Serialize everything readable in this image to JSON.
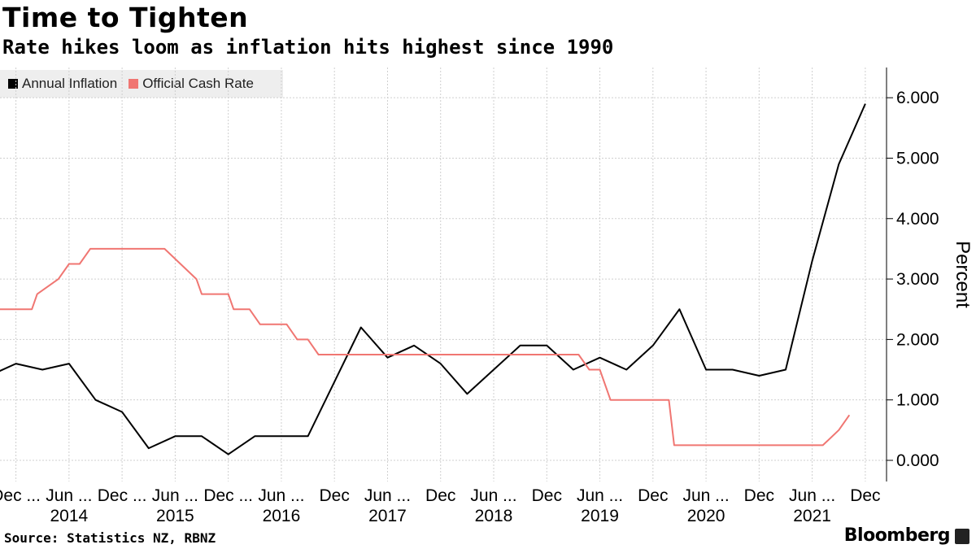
{
  "title": "Time to Tighten",
  "subtitle": "Rate hikes loom as inflation hits highest since 1990",
  "source": "Source: Statistics NZ, RBNZ",
  "brand": "Bloomberg",
  "colors": {
    "inflation": "#000000",
    "ocr": "#f07672",
    "grid": "#cfcfcf"
  },
  "chart_data": {
    "type": "line",
    "ylabel": "Percent",
    "ylim": [
      -0.35,
      6.5
    ],
    "xlim": [
      2013.85,
      2022.2
    ],
    "yticks": [
      {
        "v": 0,
        "label": "0.000"
      },
      {
        "v": 1,
        "label": "1.000"
      },
      {
        "v": 2,
        "label": "2.000"
      },
      {
        "v": 3,
        "label": "3.000"
      },
      {
        "v": 4,
        "label": "4.000"
      },
      {
        "v": 5,
        "label": "5.000"
      },
      {
        "v": 6,
        "label": "6.000"
      }
    ],
    "xticks": [
      {
        "t": 2014.0,
        "label": "Dec ..."
      },
      {
        "t": 2014.5,
        "label": "Jun ..."
      },
      {
        "t": 2015.0,
        "label": "Dec ..."
      },
      {
        "t": 2015.5,
        "label": "Jun ..."
      },
      {
        "t": 2016.0,
        "label": "Dec ..."
      },
      {
        "t": 2016.5,
        "label": "Jun ..."
      },
      {
        "t": 2017.0,
        "label": "Dec"
      },
      {
        "t": 2017.5,
        "label": "Jun ..."
      },
      {
        "t": 2018.0,
        "label": "Dec"
      },
      {
        "t": 2018.5,
        "label": "Jun ..."
      },
      {
        "t": 2019.0,
        "label": "Dec"
      },
      {
        "t": 2019.5,
        "label": "Jun ..."
      },
      {
        "t": 2020.0,
        "label": "Dec"
      },
      {
        "t": 2020.5,
        "label": "Jun ..."
      },
      {
        "t": 2021.0,
        "label": "Dec"
      },
      {
        "t": 2021.5,
        "label": "Jun ..."
      },
      {
        "t": 2022.0,
        "label": "Dec"
      }
    ],
    "year_labels": [
      {
        "t": 2014.5,
        "label": "2014"
      },
      {
        "t": 2015.5,
        "label": "2015"
      },
      {
        "t": 2016.5,
        "label": "2016"
      },
      {
        "t": 2017.5,
        "label": "2017"
      },
      {
        "t": 2018.5,
        "label": "2018"
      },
      {
        "t": 2019.5,
        "label": "2019"
      },
      {
        "t": 2020.5,
        "label": "2020"
      },
      {
        "t": 2021.5,
        "label": "2021"
      }
    ],
    "series": [
      {
        "name": "Annual Inflation",
        "color": "#000000",
        "points": [
          [
            2013.75,
            1.4
          ],
          [
            2014.0,
            1.6
          ],
          [
            2014.25,
            1.5
          ],
          [
            2014.5,
            1.6
          ],
          [
            2014.75,
            1.0
          ],
          [
            2015.0,
            0.8
          ],
          [
            2015.25,
            0.2
          ],
          [
            2015.5,
            0.4
          ],
          [
            2015.75,
            0.4
          ],
          [
            2016.0,
            0.1
          ],
          [
            2016.25,
            0.4
          ],
          [
            2016.5,
            0.4
          ],
          [
            2016.75,
            0.4
          ],
          [
            2017.0,
            1.3
          ],
          [
            2017.25,
            2.2
          ],
          [
            2017.5,
            1.7
          ],
          [
            2017.75,
            1.9
          ],
          [
            2018.0,
            1.6
          ],
          [
            2018.25,
            1.1
          ],
          [
            2018.5,
            1.5
          ],
          [
            2018.75,
            1.9
          ],
          [
            2019.0,
            1.9
          ],
          [
            2019.25,
            1.5
          ],
          [
            2019.5,
            1.7
          ],
          [
            2019.75,
            1.5
          ],
          [
            2020.0,
            1.9
          ],
          [
            2020.25,
            2.5
          ],
          [
            2020.5,
            1.5
          ],
          [
            2020.75,
            1.5
          ],
          [
            2021.0,
            1.4
          ],
          [
            2021.25,
            1.5
          ],
          [
            2021.5,
            3.3
          ],
          [
            2021.75,
            4.9
          ],
          [
            2022.0,
            5.9
          ]
        ]
      },
      {
        "name": "Official Cash Rate",
        "color": "#f07672",
        "points": [
          [
            2013.85,
            2.5
          ],
          [
            2014.0,
            2.5
          ],
          [
            2014.15,
            2.5
          ],
          [
            2014.2,
            2.75
          ],
          [
            2014.4,
            3.0
          ],
          [
            2014.5,
            3.25
          ],
          [
            2014.6,
            3.25
          ],
          [
            2014.7,
            3.5
          ],
          [
            2015.0,
            3.5
          ],
          [
            2015.4,
            3.5
          ],
          [
            2015.55,
            3.25
          ],
          [
            2015.7,
            3.0
          ],
          [
            2015.75,
            2.75
          ],
          [
            2015.9,
            2.75
          ],
          [
            2016.0,
            2.75
          ],
          [
            2016.05,
            2.5
          ],
          [
            2016.2,
            2.5
          ],
          [
            2016.3,
            2.25
          ],
          [
            2016.55,
            2.25
          ],
          [
            2016.65,
            2.0
          ],
          [
            2016.75,
            2.0
          ],
          [
            2016.85,
            1.75
          ],
          [
            2017.0,
            1.75
          ],
          [
            2018.0,
            1.75
          ],
          [
            2019.0,
            1.75
          ],
          [
            2019.3,
            1.75
          ],
          [
            2019.4,
            1.5
          ],
          [
            2019.5,
            1.5
          ],
          [
            2019.6,
            1.0
          ],
          [
            2020.0,
            1.0
          ],
          [
            2020.15,
            1.0
          ],
          [
            2020.2,
            0.25
          ],
          [
            2021.0,
            0.25
          ],
          [
            2021.6,
            0.25
          ],
          [
            2021.75,
            0.5
          ],
          [
            2021.85,
            0.75
          ]
        ]
      }
    ]
  }
}
